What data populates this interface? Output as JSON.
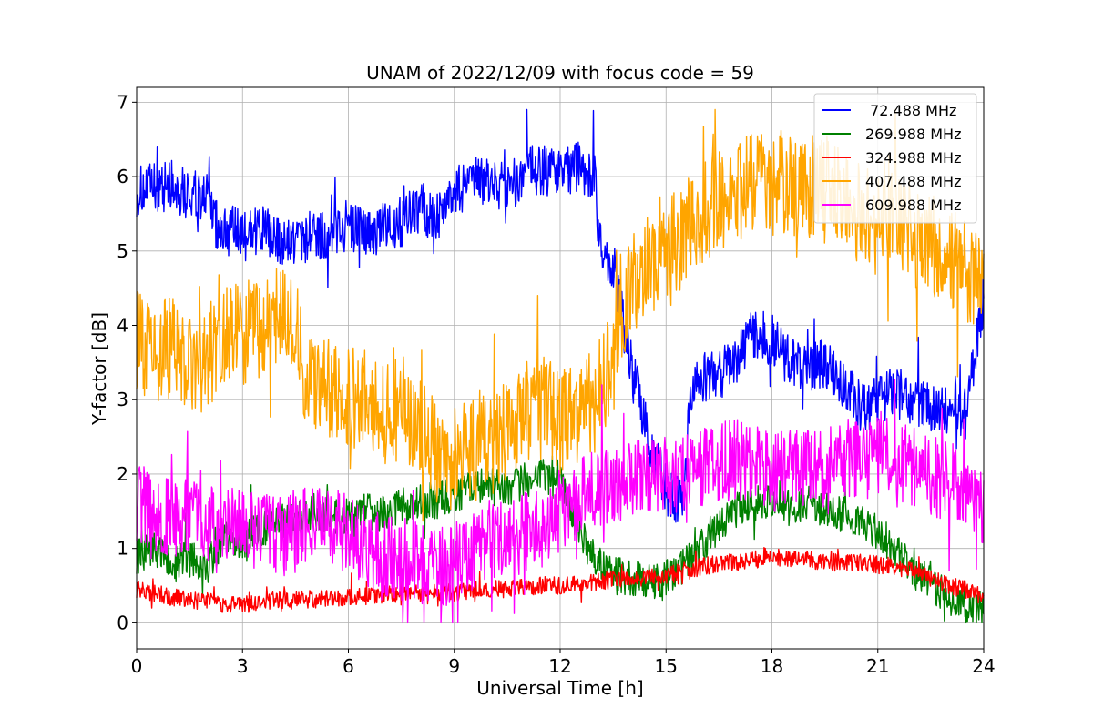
{
  "chart_data": {
    "type": "line",
    "title": "UNAM of 2022/12/09 with focus code = 59",
    "xlabel": "Universal Time [h]",
    "ylabel": "Y-factor [dB]",
    "xlim": [
      0,
      24
    ],
    "ylim": [
      -0.35,
      7.2
    ],
    "xticks": [
      0,
      3,
      6,
      9,
      12,
      15,
      18,
      21,
      24
    ],
    "yticks": [
      0,
      1,
      2,
      3,
      4,
      5,
      6,
      7
    ],
    "grid": true,
    "legend_position": "top-right",
    "series": [
      {
        "name": " 72.488 MHz",
        "color": "#0000ff",
        "x": [
          0,
          0.5,
          1,
          1.5,
          2,
          2.3,
          2.5,
          3,
          3.5,
          4,
          4.5,
          5,
          5.5,
          6,
          6.5,
          7,
          7.5,
          8,
          8.5,
          9,
          9.5,
          10,
          10.5,
          11,
          11.5,
          12,
          12.5,
          13,
          13.1,
          13.5,
          14,
          14.5,
          15,
          15.5,
          15.7,
          16,
          16.5,
          17,
          17.5,
          18,
          18.5,
          19,
          19.5,
          20,
          20.5,
          21,
          21.5,
          22,
          22.5,
          23,
          23.5,
          24
        ],
        "y": [
          5.8,
          5.85,
          5.9,
          5.75,
          5.7,
          5.3,
          5.3,
          5.2,
          5.3,
          5.1,
          5.15,
          5.2,
          5.25,
          5.35,
          5.2,
          5.3,
          5.4,
          5.6,
          5.45,
          5.8,
          5.9,
          5.95,
          5.85,
          6.05,
          6.1,
          6.05,
          6.15,
          6.0,
          5.1,
          4.8,
          3.5,
          2.5,
          1.8,
          1.6,
          3.2,
          3.3,
          3.35,
          3.5,
          3.9,
          3.8,
          3.5,
          3.4,
          3.5,
          3.2,
          2.9,
          3.0,
          3.1,
          3.0,
          2.9,
          2.85,
          2.8,
          4.4
        ]
      },
      {
        "name": "269.988 MHz",
        "color": "#008000",
        "x": [
          0,
          0.5,
          1,
          1.5,
          2,
          2.5,
          3,
          3.5,
          4,
          4.5,
          5,
          5.5,
          6,
          6.5,
          7,
          7.5,
          8,
          8.5,
          9,
          9.5,
          10,
          10.5,
          11,
          11.5,
          12,
          12.5,
          13,
          13.5,
          14,
          14.5,
          15,
          15.5,
          16,
          16.5,
          17,
          17.5,
          18,
          18.5,
          19,
          19.5,
          20,
          20.5,
          21,
          21.5,
          22,
          22.5,
          23,
          23.5,
          24
        ],
        "y": [
          0.9,
          1.0,
          0.8,
          0.85,
          0.75,
          1.2,
          1.1,
          1.25,
          1.4,
          1.35,
          1.5,
          1.4,
          1.45,
          1.5,
          1.45,
          1.55,
          1.6,
          1.65,
          1.7,
          1.8,
          1.85,
          1.75,
          1.9,
          1.95,
          2.0,
          1.3,
          0.8,
          0.65,
          0.6,
          0.55,
          0.6,
          0.75,
          1.0,
          1.3,
          1.5,
          1.6,
          1.65,
          1.55,
          1.6,
          1.55,
          1.45,
          1.35,
          1.2,
          1.0,
          0.7,
          0.5,
          0.35,
          0.25,
          0.15
        ]
      },
      {
        "name": "324.988 MHz",
        "color": "#ff0000",
        "x": [
          0,
          0.5,
          1,
          1.5,
          2,
          2.5,
          3,
          3.5,
          4,
          4.5,
          5,
          5.5,
          6,
          6.5,
          7,
          7.5,
          8,
          8.5,
          9,
          9.5,
          10,
          10.5,
          11,
          11.5,
          12,
          12.5,
          13,
          13.5,
          14,
          14.5,
          15,
          15.5,
          16,
          16.5,
          17,
          17.5,
          18,
          18.5,
          19,
          19.5,
          20,
          20.5,
          21,
          21.5,
          22,
          22.5,
          23,
          23.5,
          24
        ],
        "y": [
          0.45,
          0.4,
          0.35,
          0.3,
          0.3,
          0.25,
          0.25,
          0.28,
          0.3,
          0.3,
          0.32,
          0.33,
          0.35,
          0.35,
          0.38,
          0.4,
          0.4,
          0.42,
          0.4,
          0.43,
          0.45,
          0.45,
          0.48,
          0.5,
          0.5,
          0.52,
          0.55,
          0.58,
          0.6,
          0.62,
          0.62,
          0.7,
          0.75,
          0.8,
          0.82,
          0.85,
          0.9,
          0.85,
          0.85,
          0.82,
          0.8,
          0.82,
          0.78,
          0.75,
          0.7,
          0.6,
          0.5,
          0.45,
          0.35
        ]
      },
      {
        "name": "407.488 MHz",
        "color": "#ffa500",
        "x": [
          0,
          0.5,
          1,
          1.5,
          2,
          2.5,
          3,
          3.5,
          4,
          4.5,
          4.8,
          5,
          5.5,
          6,
          6.5,
          7,
          7.5,
          8,
          8.5,
          9,
          9.5,
          10,
          10.5,
          11,
          11.5,
          12,
          12.5,
          13,
          13.5,
          14,
          14.5,
          15,
          15.5,
          16,
          16.5,
          17,
          17.5,
          18,
          18.5,
          19,
          19.5,
          20,
          20.5,
          21,
          21.5,
          22,
          22.5,
          23,
          23.5,
          24
        ],
        "y": [
          3.8,
          3.6,
          3.7,
          3.4,
          3.6,
          3.8,
          3.9,
          4.0,
          4.1,
          4.0,
          3.3,
          3.2,
          3.1,
          3.0,
          3.05,
          2.8,
          2.9,
          2.7,
          2.3,
          2.2,
          2.3,
          2.4,
          2.6,
          2.8,
          2.9,
          2.7,
          2.8,
          3.0,
          3.5,
          4.5,
          4.8,
          5.0,
          5.2,
          5.5,
          5.7,
          5.8,
          6.0,
          5.9,
          5.95,
          5.85,
          5.9,
          5.7,
          5.5,
          5.3,
          5.6,
          5.2,
          5.1,
          4.9,
          4.7,
          4.6
        ]
      },
      {
        "name": "609.988 MHz",
        "color": "#ff00ff",
        "x": [
          0,
          0.5,
          1,
          1.5,
          2,
          2.5,
          3,
          3.5,
          4,
          4.5,
          5,
          5.5,
          6,
          6.5,
          7,
          7.5,
          8,
          8.5,
          9,
          9.5,
          10,
          10.5,
          11,
          11.5,
          12,
          12.5,
          13,
          13.5,
          14,
          14.5,
          15,
          15.5,
          16,
          16.5,
          17,
          17.5,
          18,
          18.5,
          19,
          19.5,
          20,
          20.5,
          21,
          21.5,
          22,
          22.5,
          23,
          23.5,
          24
        ],
        "y": [
          1.6,
          1.5,
          1.4,
          1.5,
          1.3,
          1.4,
          1.3,
          1.25,
          1.2,
          1.15,
          1.4,
          1.3,
          1.2,
          1.0,
          0.9,
          0.85,
          0.8,
          0.75,
          0.8,
          0.95,
          1.1,
          1.1,
          1.2,
          1.3,
          1.45,
          1.7,
          1.8,
          1.85,
          1.9,
          1.95,
          2.0,
          2.05,
          2.1,
          2.15,
          2.2,
          2.15,
          2.0,
          2.05,
          2.1,
          2.1,
          2.15,
          2.2,
          2.25,
          2.2,
          2.1,
          2.0,
          1.9,
          1.75,
          1.6
        ]
      }
    ]
  }
}
